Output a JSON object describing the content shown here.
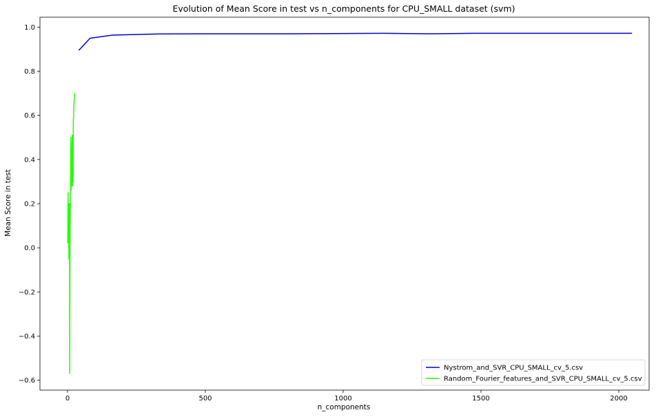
{
  "chart_data": {
    "type": "line",
    "title": "Evolution of Mean Score in test vs n_components for CPU_SMALL dataset (svm)",
    "xlabel": "n_components",
    "ylabel": "Mean Score in test",
    "xlim": [
      -100,
      2110
    ],
    "ylim": [
      -0.645,
      1.045
    ],
    "xticks": [
      0,
      500,
      1000,
      1500,
      2000
    ],
    "xtick_labels": [
      "0",
      "500",
      "1000",
      "1500",
      "2000"
    ],
    "yticks": [
      -0.6,
      -0.4,
      -0.2,
      0.0,
      0.2,
      0.4,
      0.6,
      0.8,
      1.0
    ],
    "ytick_labels": [
      "−0.6",
      "−0.4",
      "−0.2",
      "0.0",
      "0.2",
      "0.4",
      "0.6",
      "0.8",
      "1.0"
    ],
    "grid": false,
    "legend_position": "bottom-right",
    "series": [
      {
        "name": "Nystrom_and_SVR_CPU_SMALL_cv_5.csv",
        "color": "#0000cc",
        "x": [
          41,
          82,
          164,
          328,
          512,
          820,
          1148,
          1311,
          1475,
          1639,
          2048
        ],
        "y": [
          0.895,
          0.95,
          0.964,
          0.969,
          0.97,
          0.97,
          0.972,
          0.97,
          0.972,
          0.972,
          0.972
        ]
      },
      {
        "name": "Random_Fourier_features_and_SVR_CPU_SMALL_cv_5.csv",
        "color": "#22ff00",
        "x": [
          1,
          2,
          3,
          4,
          5,
          6,
          7,
          8,
          9,
          10,
          11,
          12,
          13,
          14,
          15,
          16,
          17,
          18,
          19,
          20,
          21,
          22,
          23,
          24,
          25,
          26
        ],
        "y": [
          0.02,
          0.25,
          0.03,
          0.2,
          -0.05,
          0.03,
          0.2,
          -0.57,
          0.02,
          0.18,
          0.25,
          0.5,
          0.26,
          0.31,
          0.28,
          0.45,
          0.51,
          0.28,
          0.45,
          0.3,
          0.58,
          0.6,
          0.65,
          0.66,
          0.68,
          0.7
        ]
      }
    ]
  }
}
